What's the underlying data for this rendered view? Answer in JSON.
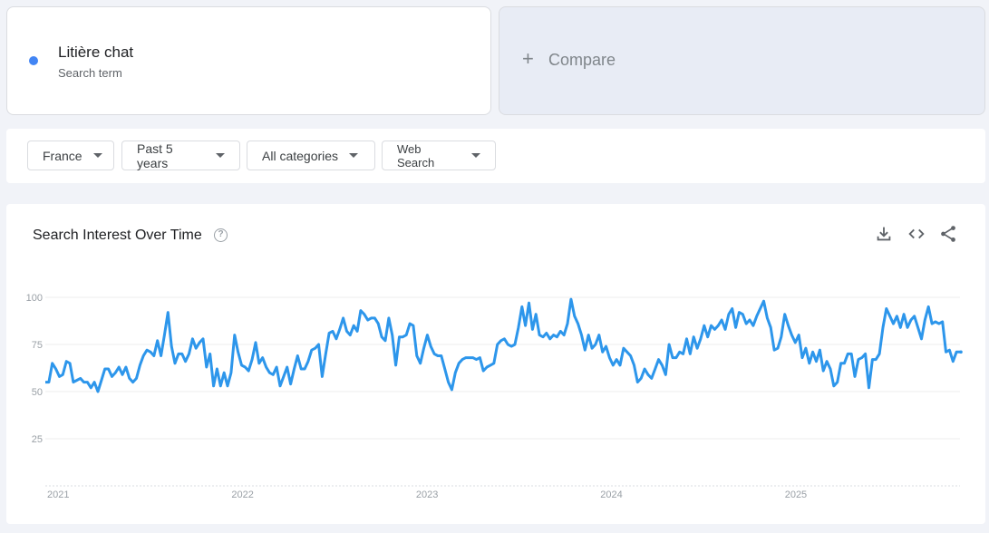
{
  "term": {
    "name": "Litière chat",
    "subtitle": "Search term",
    "color": "#4285f4"
  },
  "compare": {
    "plus": "+",
    "label": "Compare"
  },
  "filters": {
    "region": "France",
    "period": "Past 5 years",
    "category": "All categories",
    "property": "Web Search"
  },
  "card": {
    "title": "Search Interest Over Time",
    "help": "?",
    "icons": [
      "download-icon",
      "embed-icon",
      "share-icon"
    ]
  },
  "chart_data": {
    "type": "line",
    "title": "Search Interest Over Time",
    "xlabel": "",
    "ylabel": "",
    "ylim": [
      0,
      100
    ],
    "yticks": [
      25,
      50,
      75,
      100
    ],
    "x_tick_labels": [
      "2021",
      "2022",
      "2023",
      "2024",
      "2025"
    ],
    "x_start": 2021.0,
    "x_end": 2025.96,
    "grid": true,
    "line_color": "#2d96eb",
    "series": [
      {
        "name": "Litière chat",
        "values": [
          55,
          55,
          65,
          62,
          58,
          59,
          66,
          65,
          55,
          56,
          57,
          55,
          55,
          52,
          55,
          50,
          56,
          62,
          62,
          58,
          60,
          63,
          59,
          63,
          57,
          55,
          57,
          64,
          69,
          72,
          71,
          69,
          77,
          69,
          80,
          92,
          74,
          65,
          70,
          70,
          66,
          70,
          78,
          73,
          76,
          78,
          63,
          70,
          53,
          62,
          53,
          60,
          53,
          60,
          80,
          71,
          64,
          63,
          61,
          67,
          76,
          65,
          68,
          63,
          60,
          59,
          63,
          53,
          58,
          63,
          54,
          62,
          69,
          62,
          62,
          66,
          72,
          73,
          75,
          58,
          70,
          81,
          82,
          78,
          83,
          89,
          82,
          80,
          85,
          82,
          93,
          91,
          88,
          89,
          89,
          86,
          79,
          77,
          89,
          80,
          64,
          79,
          79,
          80,
          86,
          85,
          69,
          65,
          73,
          80,
          74,
          70,
          69,
          69,
          62,
          55,
          51,
          60,
          65,
          67,
          68,
          68,
          68,
          67,
          68,
          61,
          63,
          64,
          65,
          75,
          77,
          78,
          75,
          74,
          75,
          84,
          95,
          85,
          97,
          83,
          91,
          80,
          79,
          81,
          78,
          80,
          79,
          82,
          80,
          86,
          99,
          90,
          86,
          80,
          72,
          80,
          73,
          75,
          80,
          71,
          74,
          68,
          64,
          67,
          64,
          73,
          71,
          69,
          64,
          55,
          57,
          62,
          59,
          57,
          62,
          67,
          64,
          59,
          75,
          68,
          68,
          71,
          70,
          78,
          70,
          79,
          73,
          78,
          85,
          79,
          85,
          83,
          85,
          88,
          83,
          91,
          94,
          84,
          92,
          91,
          86,
          88,
          85,
          90,
          94,
          98,
          89,
          84,
          72,
          73,
          79,
          91,
          85,
          80,
          76,
          80,
          68,
          73,
          65,
          71,
          66,
          72,
          61,
          66,
          62,
          53,
          55,
          65,
          65,
          70,
          70,
          58,
          67,
          68,
          70,
          52,
          67,
          67,
          70,
          84,
          94,
          90,
          86,
          90,
          84,
          91,
          84,
          88,
          90,
          84,
          78,
          88,
          95,
          86,
          87,
          86,
          87,
          71,
          72,
          66,
          71,
          71
        ]
      }
    ]
  }
}
